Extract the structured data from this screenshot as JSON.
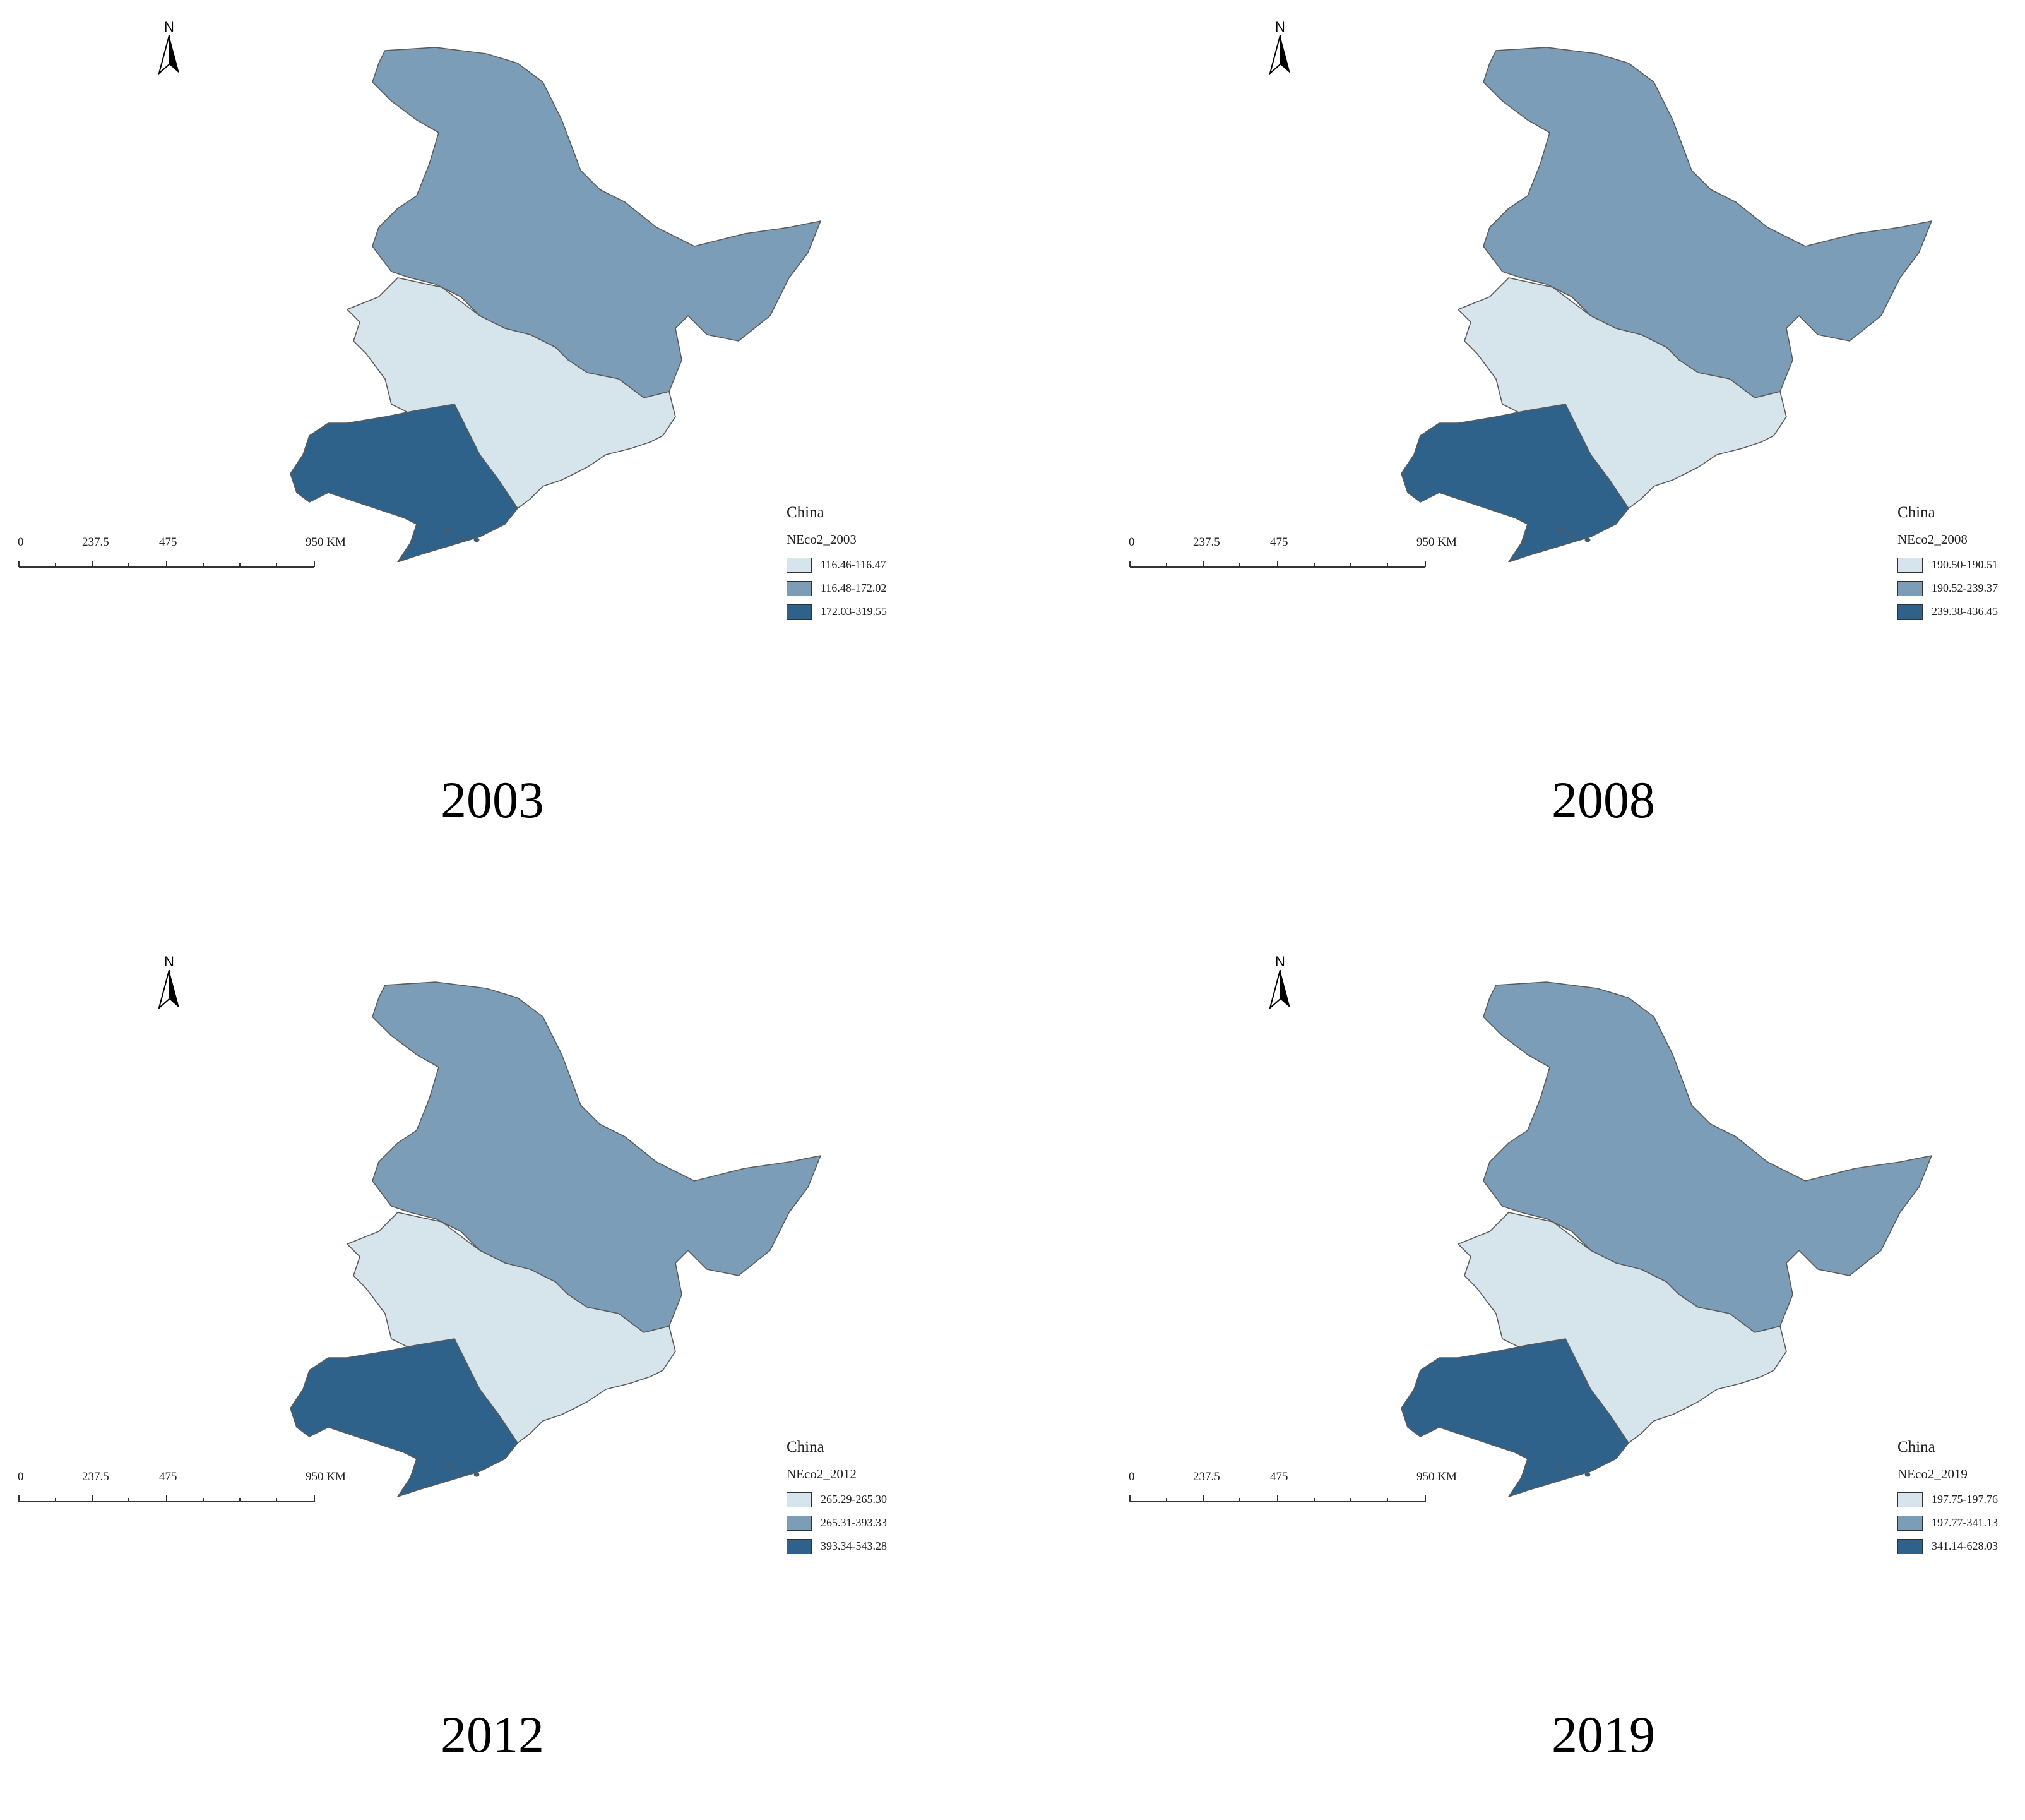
{
  "colors": {
    "light": "#d6e5ec",
    "mid": "#7c9db8",
    "dark": "#2e628a"
  },
  "panels": [
    {
      "year": "2003",
      "region_label": "China",
      "field": "NEco2_2003",
      "scale": {
        "ticks": [
          "0",
          "237.5",
          "475",
          "950 KM"
        ]
      },
      "north": "N",
      "legend": [
        {
          "label": "116.46-116.47",
          "class": "light"
        },
        {
          "label": "116.48-172.02",
          "class": "mid"
        },
        {
          "label": "172.03-319.55",
          "class": "dark"
        }
      ]
    },
    {
      "year": "2008",
      "region_label": "China",
      "field": "NEco2_2008",
      "scale": {
        "ticks": [
          "0",
          "237.5",
          "475",
          "950 KM"
        ]
      },
      "north": "N",
      "legend": [
        {
          "label": "190.50-190.51",
          "class": "light"
        },
        {
          "label": "190.52-239.37",
          "class": "mid"
        },
        {
          "label": "239.38-436.45",
          "class": "dark"
        }
      ]
    },
    {
      "year": "2012",
      "region_label": "China",
      "field": "NEco2_2012",
      "scale": {
        "ticks": [
          "0",
          "237.5",
          "475",
          "950 KM"
        ]
      },
      "north": "N",
      "legend": [
        {
          "label": "265.29-265.30",
          "class": "light"
        },
        {
          "label": "265.31-393.33",
          "class": "mid"
        },
        {
          "label": "393.34-543.28",
          "class": "dark"
        }
      ]
    },
    {
      "year": "2019",
      "region_label": "China",
      "field": "NEco2_2019",
      "scale": {
        "ticks": [
          "0",
          "237.5",
          "475",
          "950 KM"
        ]
      },
      "north": "N",
      "legend": [
        {
          "label": "197.75-197.76",
          "class": "light"
        },
        {
          "label": "197.77-341.13",
          "class": "mid"
        },
        {
          "label": "341.14-628.03",
          "class": "dark"
        }
      ]
    }
  ]
}
